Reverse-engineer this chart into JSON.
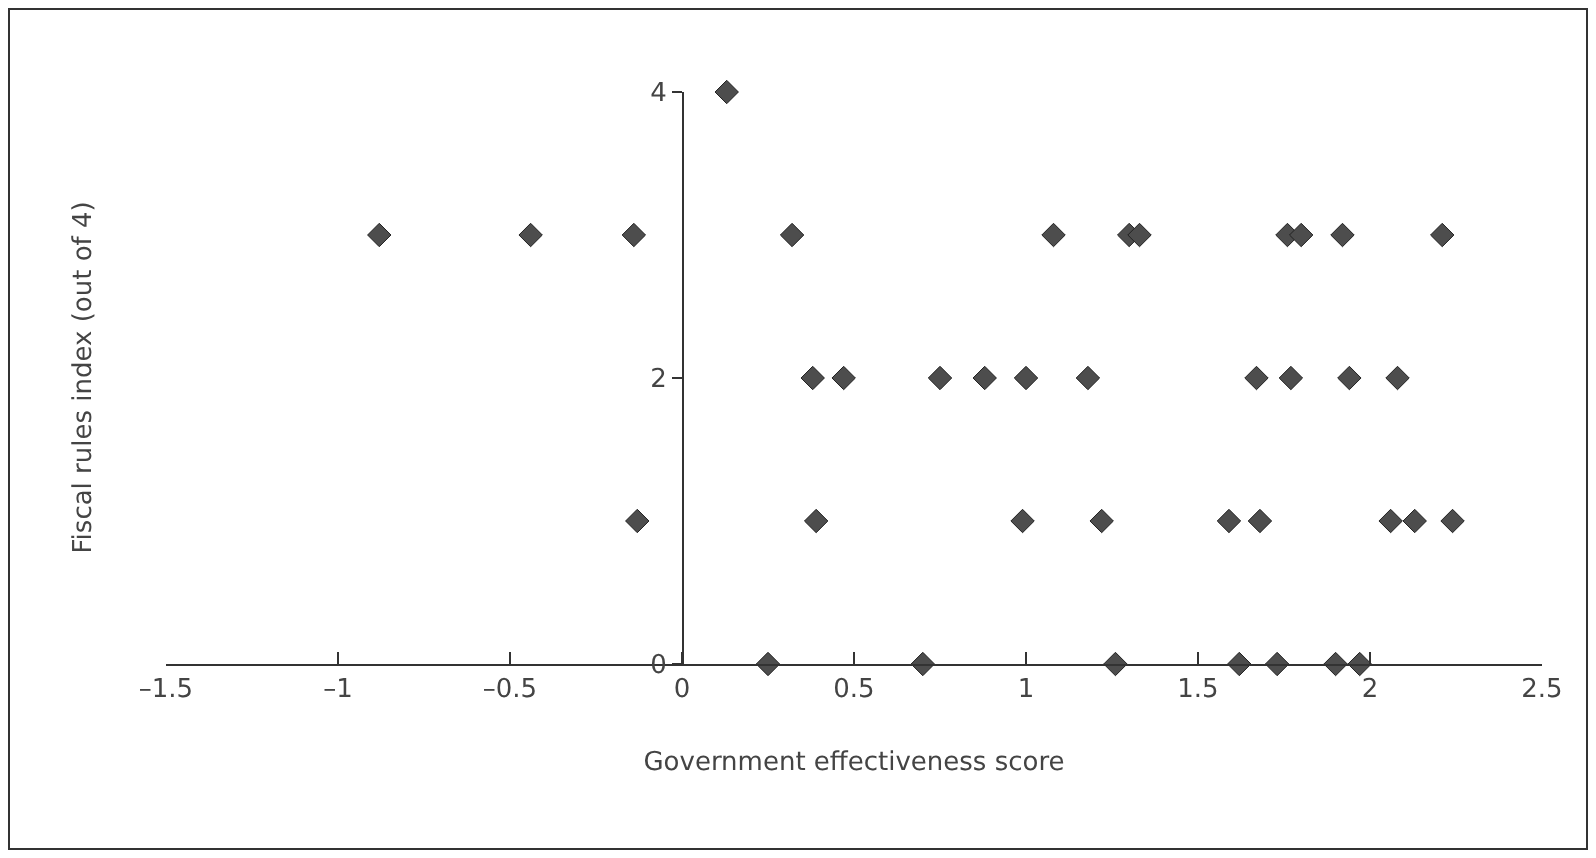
{
  "chart_data": {
    "type": "scatter",
    "xlabel": "Government effectiveness score",
    "ylabel": "Fiscal rules index (out of 4)",
    "x": [
      0.13,
      -0.88,
      -0.44,
      -0.14,
      0.32,
      1.08,
      1.3,
      1.33,
      1.76,
      1.8,
      1.92,
      2.21,
      0.38,
      0.47,
      0.75,
      0.88,
      1.0,
      1.18,
      1.67,
      1.77,
      1.94,
      2.08,
      -0.13,
      0.39,
      0.99,
      1.22,
      1.59,
      1.68,
      2.06,
      2.13,
      2.24,
      0.25,
      0.7,
      1.26,
      1.62,
      1.73,
      1.9,
      1.97
    ],
    "values": [
      4,
      3,
      3,
      3,
      3,
      3,
      3,
      3,
      3,
      3,
      3,
      3,
      2,
      2,
      2,
      2,
      2,
      2,
      2,
      2,
      2,
      2,
      1,
      1,
      1,
      1,
      1,
      1,
      1,
      1,
      1,
      0,
      0,
      0,
      0,
      0,
      0,
      0
    ],
    "color": "#4d4d4d",
    "marker": "diamond",
    "xlim": [
      -1.5,
      2.5
    ],
    "xticks": [
      {
        "value": -1.5,
        "label": "–1.5"
      },
      {
        "value": -1,
        "label": "–1"
      },
      {
        "value": -0.5,
        "label": "–0.5"
      },
      0,
      0.5,
      1,
      1.5,
      2,
      2.5
    ],
    "ylim": [
      0,
      4
    ],
    "yticks": [
      0,
      2,
      4
    ],
    "grid": false
  }
}
